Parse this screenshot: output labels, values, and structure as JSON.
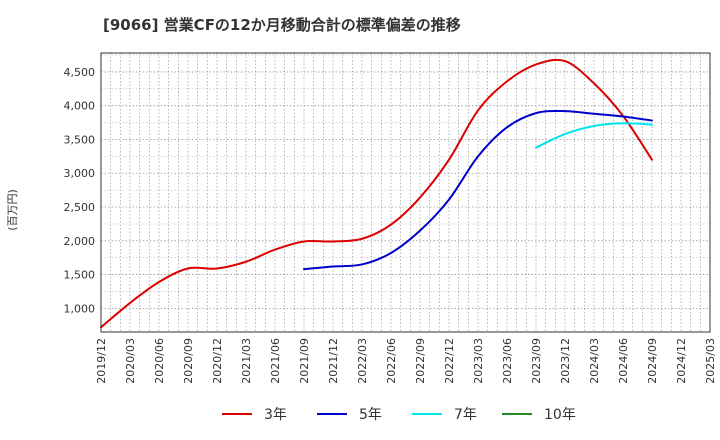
{
  "chart_data": {
    "type": "line",
    "title": "[9066]  営業CFの12か月移動合計の標準偏差の推移",
    "ylabel": "(百万円)",
    "xlabel": "",
    "x": [
      "2019/12",
      "2020/03",
      "2020/06",
      "2020/09",
      "2020/12",
      "2021/03",
      "2021/06",
      "2021/09",
      "2021/12",
      "2022/03",
      "2022/06",
      "2022/09",
      "2022/12",
      "2023/03",
      "2023/06",
      "2023/09",
      "2023/12",
      "2024/03",
      "2024/06",
      "2024/09",
      "2024/12",
      "2025/03"
    ],
    "ylim": [
      650,
      4780
    ],
    "yticks": [
      1000,
      1500,
      2000,
      2500,
      3000,
      3500,
      4000,
      4500
    ],
    "ytick_labels": [
      "1,000",
      "1,500",
      "2,000",
      "2,500",
      "3,000",
      "3,500",
      "4,000",
      "4,500"
    ],
    "grid": true,
    "legend_position": "bottom",
    "series": [
      {
        "name": "3年",
        "color": "#dd0000",
        "values": [
          720,
          1080,
          1390,
          1590,
          1590,
          1690,
          1870,
          1990,
          1990,
          2030,
          2240,
          2640,
          3200,
          3930,
          4360,
          4610,
          4660,
          4330,
          3850,
          3200,
          null,
          null
        ]
      },
      {
        "name": "5年",
        "color": "#0000cc",
        "values": [
          null,
          null,
          null,
          null,
          null,
          null,
          null,
          1580,
          1620,
          1650,
          1820,
          2150,
          2610,
          3250,
          3680,
          3890,
          3920,
          3880,
          3840,
          3780,
          null,
          null
        ]
      },
      {
        "name": "7年",
        "color": "#00e5ee",
        "values": [
          null,
          null,
          null,
          null,
          null,
          null,
          null,
          null,
          null,
          null,
          null,
          null,
          null,
          null,
          null,
          3380,
          3580,
          3700,
          3740,
          3720,
          null,
          null
        ]
      },
      {
        "name": "10年",
        "color": "#228b22",
        "values": [
          null,
          null,
          null,
          null,
          null,
          null,
          null,
          null,
          null,
          null,
          null,
          null,
          null,
          null,
          null,
          null,
          null,
          null,
          null,
          null,
          null,
          null
        ]
      }
    ]
  }
}
